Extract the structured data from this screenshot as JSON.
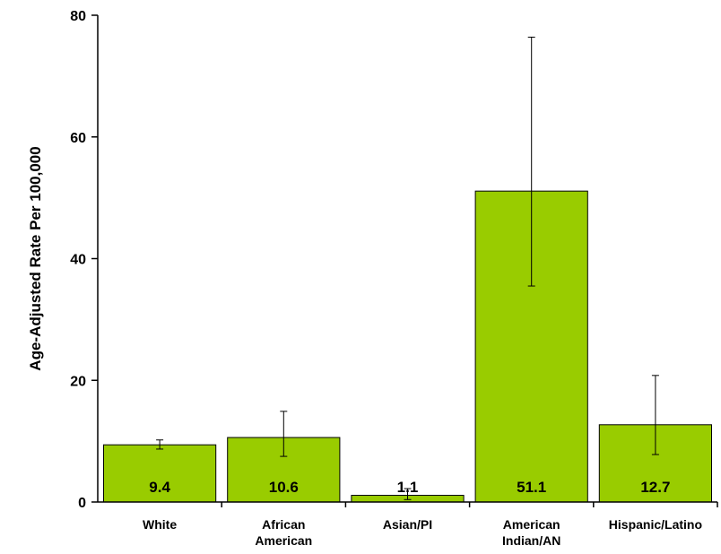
{
  "chart_data": {
    "type": "bar",
    "ylabel": "Age-Adjusted Rate Per 100,000",
    "xlabel": "",
    "ylim": [
      0,
      80
    ],
    "yticks": [
      0,
      20,
      40,
      60,
      80
    ],
    "grid": false,
    "categories": [
      [
        "White"
      ],
      [
        "African",
        "American"
      ],
      [
        "Asian/PI"
      ],
      [
        "American",
        "Indian/AN"
      ],
      [
        "Hispanic/Latino"
      ]
    ],
    "values": [
      9.4,
      10.6,
      1.1,
      51.1,
      12.7
    ],
    "value_labels": [
      "9.4",
      "10.6",
      "1.1",
      "51.1",
      "12.7"
    ],
    "error_low": [
      8.7,
      7.5,
      0.4,
      35.5,
      7.8
    ],
    "error_high": [
      10.2,
      14.9,
      2.2,
      76.4,
      20.8
    ],
    "bar_color": "#99cc00",
    "bar_edge_color": "#000000"
  }
}
